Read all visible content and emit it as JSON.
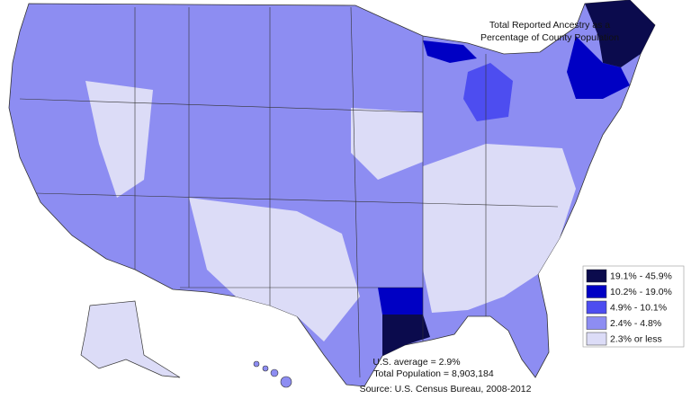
{
  "title_lines": [
    "Total Reported Ancestry as a",
    "Percentage of County Population"
  ],
  "legend": [
    {
      "label": "19.1% - 45.9%",
      "color": "#0b0b4d"
    },
    {
      "label": "10.2% - 19.0%",
      "color": "#0000c4"
    },
    {
      "label": "4.9% - 10.1%",
      "color": "#4d4df0"
    },
    {
      "label": "2.4% - 4.8%",
      "color": "#8d8df2"
    },
    {
      "label": "2.3% or less",
      "color": "#dcdcf7"
    }
  ],
  "notes": [
    "U.S. average = 2.9%",
    "Total Population = 8,903,184"
  ],
  "source": "Source:  U.S. Census Bureau, 2008-2012"
}
